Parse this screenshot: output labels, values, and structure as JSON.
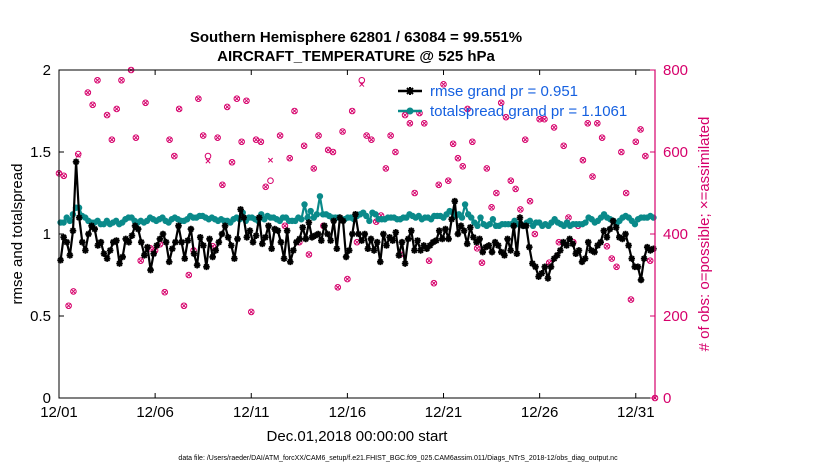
{
  "chart_data": {
    "type": "line",
    "title": [
      "Southern Hemisphere 62801 / 63084 = 99.551%",
      "AIRCRAFT_TEMPERATURE @ 525 hPa"
    ],
    "xlabel": "Dec.01,2018 00:00:00 start",
    "ylabel": "rmse and totalspread",
    "ylabel_right": "# of obs: o=possible; ×=assimilated",
    "x_tick_labels": [
      "12/01",
      "12/06",
      "12/11",
      "12/16",
      "12/21",
      "12/26",
      "12/31"
    ],
    "x_tick_values": [
      0,
      5,
      10,
      15,
      20,
      25,
      30
    ],
    "xlim": [
      0,
      31
    ],
    "ylim": [
      0,
      2
    ],
    "y_ticks": [
      0,
      0.5,
      1,
      1.5,
      2
    ],
    "y_tick_labels": [
      "0",
      "0.5",
      "1",
      "1.5",
      "2"
    ],
    "ylim_right": [
      0,
      800
    ],
    "y_ticks_right": [
      0,
      200,
      400,
      600,
      800
    ],
    "y_tick_labels_right": [
      "0",
      "200",
      "400",
      "600",
      "800"
    ],
    "series": [
      {
        "name": "rmse grand pr = 0.951",
        "color": "#000000",
        "marker": "star",
        "values": [
          0.84,
          0.98,
          0.95,
          0.87,
          1.02,
          1.44,
          1.1,
          0.95,
          0.9,
          1.0,
          1.05,
          1.03,
          0.93,
          0.95,
          0.88,
          0.85,
          0.9,
          0.95,
          0.96,
          0.82,
          0.86,
          0.97,
          0.95,
          0.99,
          1.05,
          1.03,
          0.95,
          0.87,
          0.92,
          0.78,
          0.88,
          0.93,
          0.97,
          1.0,
          0.95,
          0.83,
          0.91,
          0.95,
          1.05,
          0.95,
          0.85,
          0.96,
          1.03,
          0.88,
          0.81,
          0.98,
          0.93,
          0.8,
          0.97,
          0.86,
          0.9,
          0.95,
          1.0,
          1.05,
          0.98,
          0.93,
          0.85,
          0.97,
          1.15,
          1.1,
          0.98,
          1.02,
          0.95,
          0.99,
          1.1,
          0.94,
          0.98,
          1.05,
          0.91,
          1.03,
          1.02,
          0.95,
          0.85,
          1.02,
          0.83,
          0.9,
          0.95,
          0.97,
          1.04,
          0.97,
          1.07,
          0.98,
          0.99,
          1.0,
          0.96,
          1.05,
          1.0,
          0.96,
          1.08,
          0.91,
          1.1,
          1.08,
          0.86,
          0.9,
          1.0,
          1.12,
          1.0,
          0.96,
          1.0,
          0.91,
          0.97,
          0.9,
          0.95,
          0.83,
          1.0,
          0.93,
          0.98,
          0.96,
          1.01,
          0.87,
          0.95,
          0.82,
          0.97,
          1.02,
          0.9,
          0.96,
          0.9,
          0.93,
          0.91,
          0.93,
          0.95,
          0.96,
          1.02,
          0.97,
          1.03,
          0.97,
          1.09,
          1.2,
          1.0,
          1.05,
          1.02,
          0.94,
          1.04,
          0.98,
          0.95,
          0.97,
          0.89,
          0.92,
          0.93,
          0.89,
          0.95,
          0.93,
          0.89,
          0.87,
          0.97,
          0.9,
          1.05,
          0.88,
          1.1,
          1.05,
          1.05,
          0.92,
          0.82,
          0.8,
          0.74,
          0.76,
          0.8,
          0.73,
          0.8,
          0.85,
          0.87,
          0.9,
          0.95,
          0.93,
          0.97,
          0.94,
          0.88,
          0.9,
          0.83,
          0.85,
          0.95,
          0.9,
          0.89,
          0.93,
          0.95,
          1.02,
          0.98,
          1.03,
          1.08,
          1.04,
          0.98,
          0.97,
          1.0,
          0.93,
          0.85,
          0.8,
          0.8,
          0.72,
          0.85,
          0.92,
          0.9,
          0.91
        ]
      },
      {
        "name": "totalspread grand pr = 1.1061",
        "color": "#0a8a8a",
        "marker": "circle",
        "values": [
          1.07,
          1.07,
          1.1,
          1.08,
          1.12,
          1.16,
          1.16,
          1.11,
          1.1,
          1.08,
          1.07,
          1.07,
          1.08,
          1.06,
          1.06,
          1.08,
          1.06,
          1.07,
          1.08,
          1.06,
          1.07,
          1.09,
          1.1,
          1.1,
          1.08,
          1.07,
          1.08,
          1.07,
          1.08,
          1.1,
          1.09,
          1.08,
          1.09,
          1.1,
          1.08,
          1.07,
          1.09,
          1.1,
          1.09,
          1.08,
          1.08,
          1.09,
          1.11,
          1.1,
          1.1,
          1.11,
          1.11,
          1.1,
          1.09,
          1.1,
          1.09,
          1.08,
          1.09,
          1.08,
          1.08,
          1.07,
          1.09,
          1.1,
          1.09,
          1.13,
          1.08,
          1.1,
          1.1,
          1.09,
          1.08,
          1.12,
          1.09,
          1.11,
          1.1,
          1.1,
          1.09,
          1.08,
          1.1,
          1.1,
          1.08,
          1.08,
          1.08,
          1.1,
          1.09,
          1.18,
          1.1,
          1.14,
          1.1,
          1.12,
          1.23,
          1.12,
          1.12,
          1.11,
          1.1,
          1.1,
          1.1,
          1.09,
          1.09,
          1.1,
          1.1,
          1.09,
          1.11,
          1.12,
          1.13,
          1.11,
          1.08,
          1.13,
          1.12,
          1.09,
          1.09,
          1.09,
          1.1,
          1.1,
          1.1,
          1.09,
          1.09,
          1.1,
          1.1,
          1.12,
          1.11,
          1.1,
          1.11,
          1.09,
          1.1,
          1.1,
          1.09,
          1.11,
          1.11,
          1.11,
          1.1,
          1.12,
          1.14,
          1.13,
          1.11,
          1.12,
          1.1,
          1.18,
          1.12,
          1.1,
          1.07,
          1.05,
          1.1,
          1.06,
          1.05,
          1.06,
          1.09,
          1.05,
          1.05,
          1.06,
          1.06,
          1.06,
          1.06,
          1.08,
          1.06,
          1.06,
          1.05,
          1.07,
          1.08,
          1.05,
          1.07,
          1.07,
          1.05,
          1.06,
          1.05,
          1.07,
          1.09,
          1.07,
          1.06,
          1.05,
          1.07,
          1.05,
          1.06,
          1.06,
          1.06,
          1.06,
          1.07,
          1.1,
          1.09,
          1.07,
          1.08,
          1.1,
          1.12,
          1.1,
          1.09,
          1.08,
          1.06,
          1.08,
          1.1,
          1.11,
          1.1,
          1.08,
          1.06,
          1.09,
          1.1,
          1.1,
          1.1,
          1.11,
          1.1
        ]
      }
    ],
    "obs_counts": {
      "color": "#d6006b",
      "possible_marker": "o",
      "assimilated_marker": "x",
      "times": [
        0.0,
        0.25,
        0.5,
        0.75,
        1.0,
        1.5,
        1.75,
        2.0,
        2.5,
        2.75,
        3.0,
        3.25,
        3.75,
        4.0,
        4.25,
        4.5,
        4.75,
        5.0,
        5.25,
        5.5,
        5.75,
        6.0,
        6.25,
        6.5,
        6.75,
        7.0,
        7.25,
        7.5,
        7.75,
        8.0,
        8.25,
        8.5,
        8.75,
        9.0,
        9.25,
        9.5,
        9.75,
        10.0,
        10.25,
        10.5,
        10.75,
        11.0,
        11.5,
        11.75,
        12.0,
        12.25,
        12.5,
        12.75,
        13.0,
        13.25,
        13.5,
        13.75,
        14.0,
        14.25,
        14.5,
        14.75,
        15.0,
        15.25,
        15.5,
        15.75,
        16.0,
        16.25,
        16.5,
        16.75,
        17.0,
        17.25,
        17.5,
        17.75,
        18.0,
        18.25,
        18.5,
        18.75,
        19.0,
        19.25,
        19.5,
        19.75,
        20.0,
        20.25,
        20.5,
        20.75,
        21.0,
        21.25,
        21.5,
        21.75,
        22.0,
        22.25,
        22.5,
        22.75,
        23.0,
        23.25,
        23.5,
        23.75,
        24.0,
        24.25,
        24.5,
        24.75,
        25.0,
        25.25,
        25.5,
        25.75,
        26.0,
        26.25,
        26.5,
        26.75,
        27.0,
        27.25,
        27.5,
        27.75,
        28.0,
        28.25,
        28.5,
        28.75,
        29.0,
        29.25,
        29.5,
        29.75,
        30.0,
        30.25,
        30.5,
        30.75,
        31.0
      ],
      "possible": [
        548,
        542,
        225,
        260,
        595,
        745,
        715,
        775,
        690,
        630,
        705,
        775,
        800,
        635,
        335,
        720,
        365,
        360,
        375,
        258,
        630,
        590,
        705,
        225,
        300,
        360,
        730,
        640,
        590,
        370,
        635,
        520,
        710,
        575,
        730,
        625,
        725,
        210,
        630,
        625,
        515,
        530,
        640,
        420,
        585,
        700,
        380,
        615,
        350,
        560,
        640,
        420,
        605,
        600,
        270,
        650,
        290,
        700,
        380,
        775,
        640,
        630,
        430,
        445,
        560,
        640,
        600,
        350,
        690,
        670,
        500,
        695,
        670,
        335,
        280,
        520,
        765,
        530,
        620,
        585,
        565,
        705,
        625,
        365,
        330,
        560,
        465,
        500,
        720,
        685,
        530,
        510,
        460,
        630,
        480,
        400,
        680,
        680,
        330,
        660,
        380,
        615,
        440,
        380,
        420,
        580,
        670,
        540,
        670,
        635,
        370,
        340,
        320,
        600,
        500,
        240,
        625,
        655,
        590,
        335,
        0
      ],
      "assimilated": [
        548,
        542,
        225,
        260,
        592,
        745,
        715,
        775,
        690,
        630,
        705,
        775,
        800,
        635,
        335,
        720,
        365,
        360,
        375,
        258,
        630,
        590,
        705,
        225,
        300,
        360,
        730,
        640,
        578,
        370,
        635,
        520,
        710,
        575,
        730,
        625,
        725,
        210,
        630,
        625,
        515,
        580,
        640,
        420,
        585,
        700,
        380,
        615,
        350,
        560,
        640,
        420,
        605,
        600,
        270,
        650,
        290,
        700,
        380,
        765,
        640,
        630,
        430,
        445,
        560,
        640,
        600,
        350,
        690,
        670,
        500,
        695,
        670,
        335,
        280,
        520,
        765,
        530,
        620,
        585,
        565,
        705,
        625,
        365,
        330,
        560,
        465,
        500,
        720,
        685,
        530,
        510,
        460,
        630,
        480,
        400,
        680,
        680,
        330,
        660,
        380,
        615,
        440,
        380,
        420,
        580,
        670,
        540,
        670,
        635,
        370,
        340,
        320,
        600,
        500,
        240,
        625,
        655,
        590,
        335,
        0
      ]
    },
    "legend_position": "top-right",
    "grid": false
  },
  "footer": "data file: /Users/raeder/DAI/ATM_forcXX/CAM6_setup/f.e21.FHIST_BGC.f09_025.CAM6assim.011/Diags_NTrS_2018-12/obs_diag_output.nc"
}
